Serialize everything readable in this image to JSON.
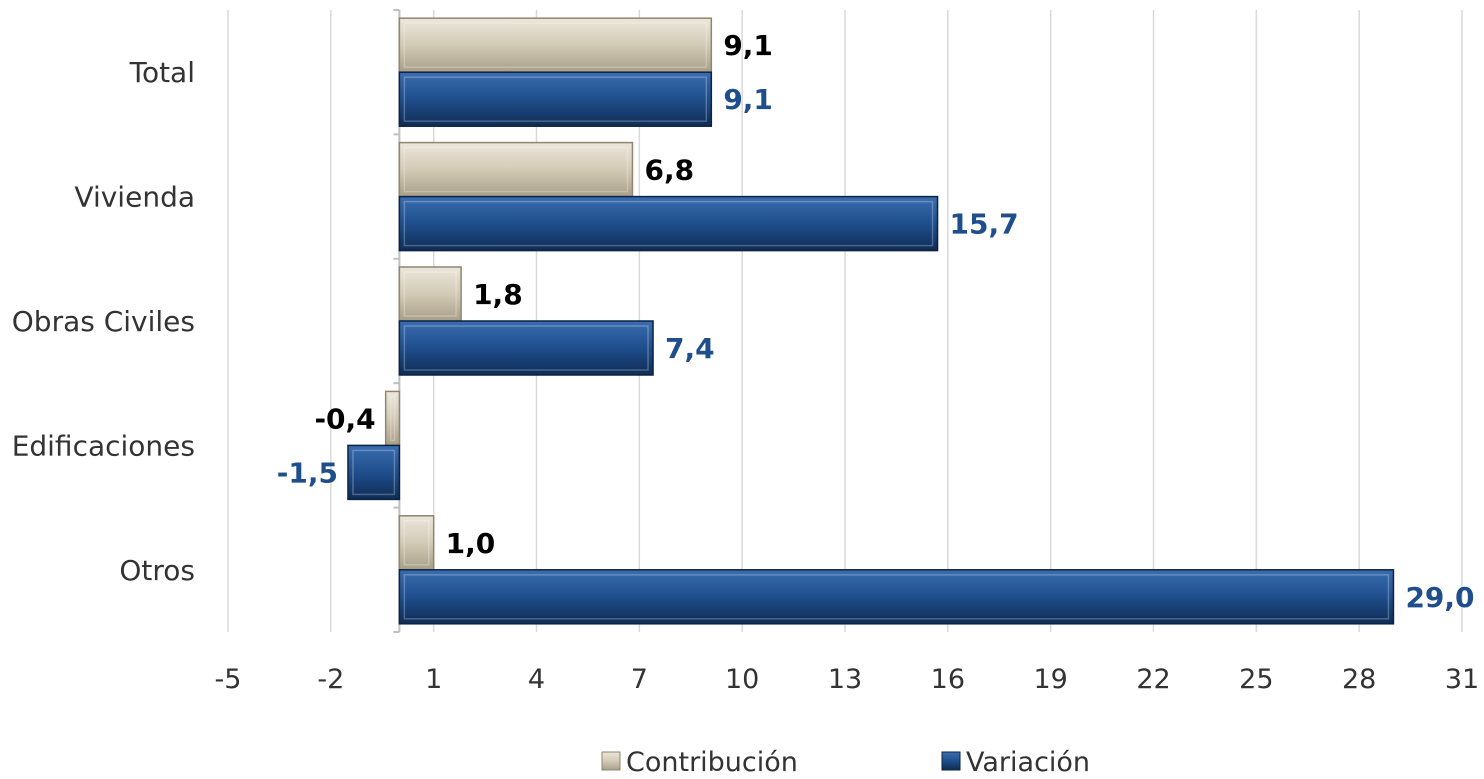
{
  "chart_data": {
    "type": "bar",
    "orientation": "horizontal",
    "categories": [
      "Total",
      "Vivienda",
      "Obras Civiles",
      "Edificaciones",
      "Otros"
    ],
    "series": [
      {
        "name": "Contribución",
        "values": [
          9.1,
          6.8,
          1.8,
          -0.4,
          1.0
        ],
        "labels": [
          "9,1",
          "6,8",
          "1,8",
          "-0,4",
          "1,0"
        ],
        "color": "#d8d0bf",
        "label_color": "#000000"
      },
      {
        "name": "Variación",
        "values": [
          9.1,
          15.7,
          7.4,
          -1.5,
          29.0
        ],
        "labels": [
          "9,1",
          "15,7",
          "7,4",
          "-1,5",
          "29,0"
        ],
        "color": "#1f4e8c",
        "label_color": "#1f4e8c"
      }
    ],
    "x_ticks": [
      "-5",
      "-2",
      "1",
      "4",
      "7",
      "10",
      "13",
      "16",
      "19",
      "22",
      "25",
      "28",
      "31"
    ],
    "xlim": [
      -5,
      31
    ],
    "grid": true,
    "legend_position": "bottom"
  }
}
